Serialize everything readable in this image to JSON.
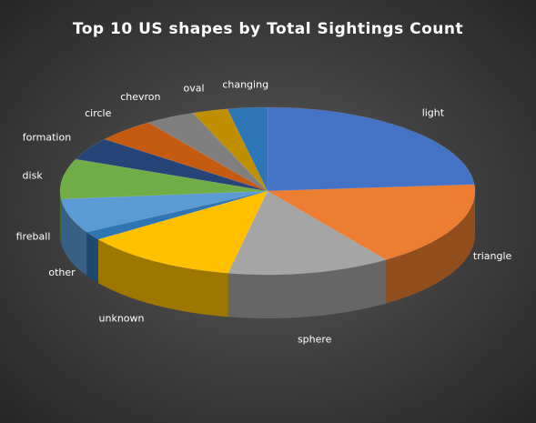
{
  "chart_data": {
    "type": "pie",
    "style": "3d",
    "title": "Top 10 US shapes by Total Sightings Count",
    "categories": [
      "light",
      "triangle",
      "sphere",
      "unknown",
      "other",
      "fireball",
      "disk",
      "formation",
      "circle",
      "chevron",
      "oval",
      "changing"
    ],
    "values": [
      21.5,
      15.0,
      11.5,
      11.0,
      1.5,
      6.0,
      7.0,
      4.0,
      4.2,
      3.5,
      2.5,
      2.8
    ],
    "colors": [
      "#4472c4",
      "#ed7d31",
      "#a5a5a5",
      "#ffc000",
      "#5b9bd5",
      "#5b9bd5",
      "#70ad47",
      "#264478",
      "#9e480e",
      "#636363",
      "#997300",
      "#255e91"
    ],
    "label_colors": [
      "#ffffff"
    ],
    "legend": "none"
  }
}
